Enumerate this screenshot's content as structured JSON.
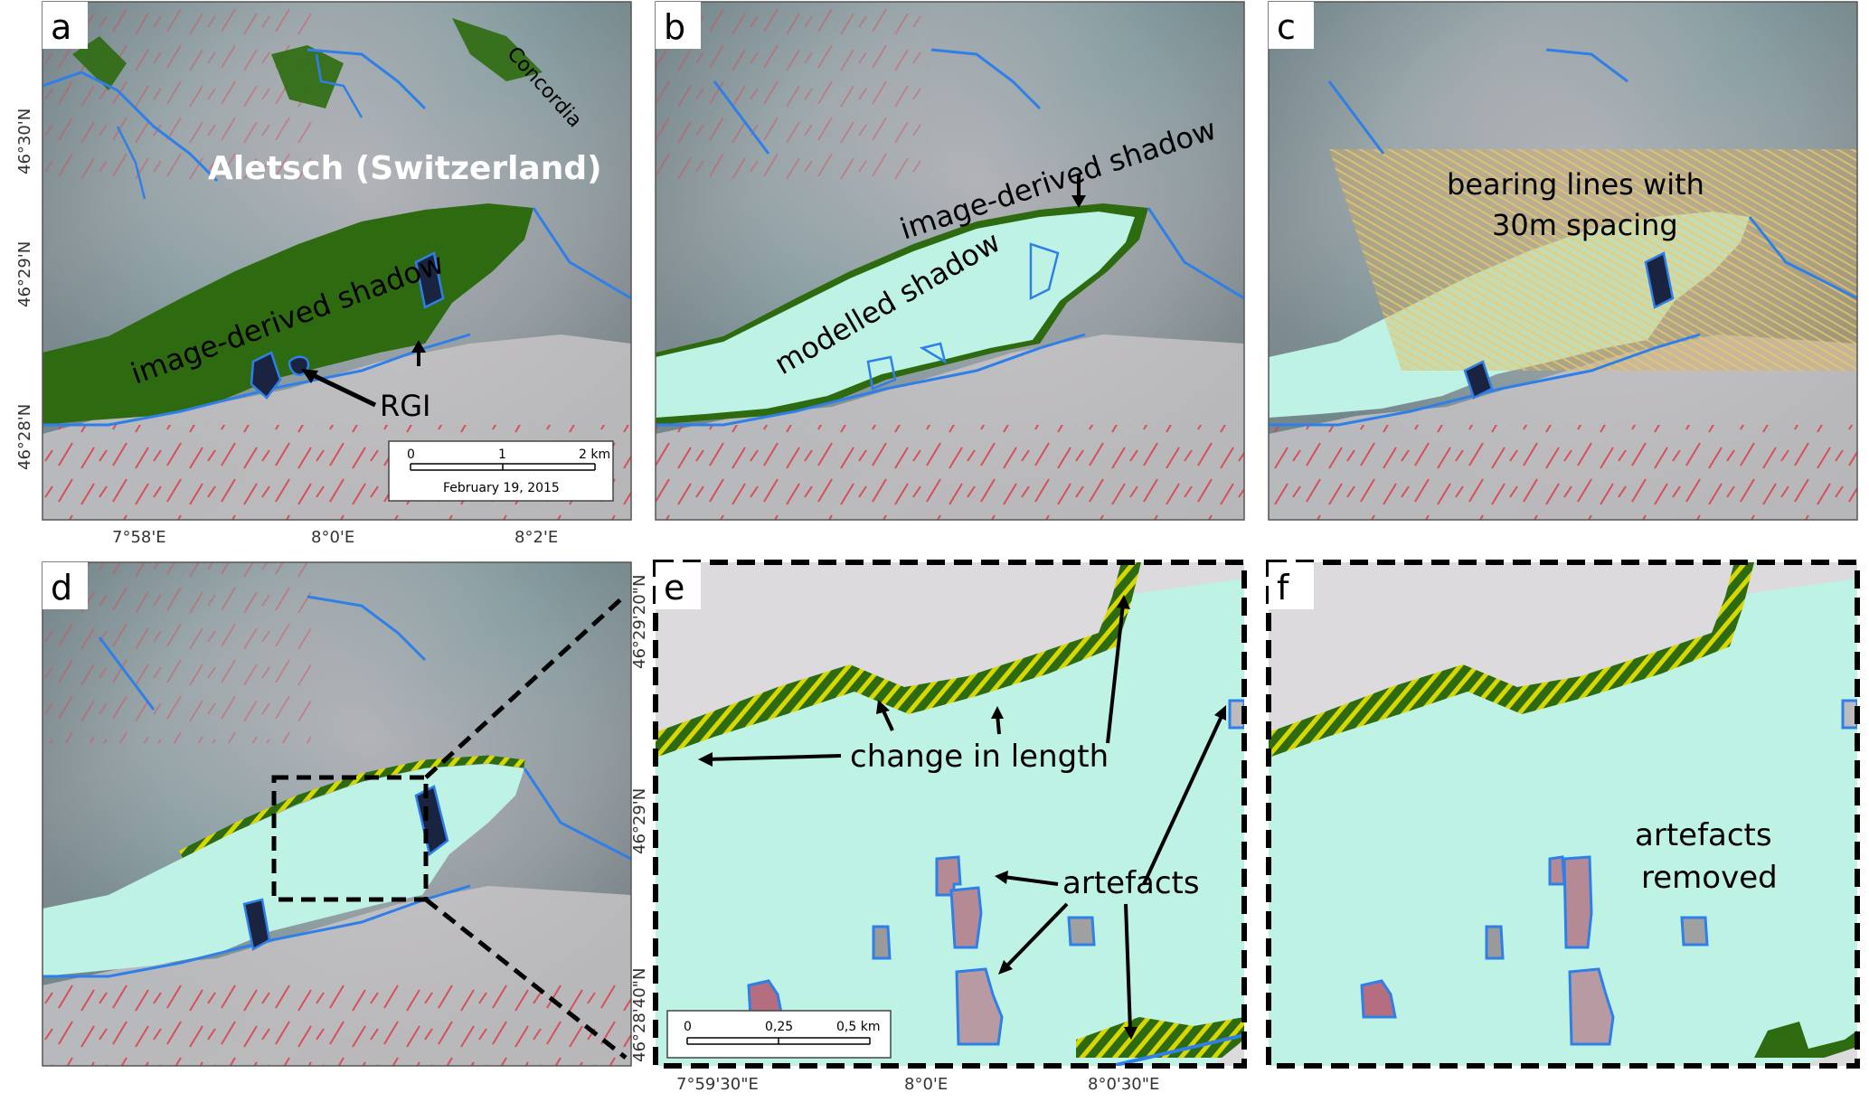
{
  "colors": {
    "shadow_image": "#2e6b10",
    "shadow_model": "#bdf2e4",
    "outline_rgi": "#2f7fe8",
    "hatch_change": "#d8d800",
    "bearing_overlay": "#d9b050",
    "frame": "#000000"
  },
  "panels": {
    "a": {
      "letter": "a",
      "site_label": "Aletsch (Switzerland)",
      "place_label": "Concordia",
      "shadow_label": "image-derived shadow",
      "rgi_label": "RGI",
      "scale_ticks": [
        "0",
        "1",
        "2 km"
      ],
      "date": "February 19, 2015",
      "lat_labels": [
        "46°30'N",
        "46°29'N",
        "46°28'N"
      ],
      "lon_labels": [
        "7°58'E",
        "8°0'E",
        "8°2'E"
      ]
    },
    "b": {
      "letter": "b",
      "shadow_label": "image-derived shadow",
      "modelled_label": "modelled shadow"
    },
    "c": {
      "letter": "c",
      "bearing_label_line1": "bearing lines with",
      "bearing_label_line2": "30m spacing"
    },
    "d": {
      "letter": "d"
    },
    "e": {
      "letter": "e",
      "change_label": "change in length",
      "artefacts_label": "artefacts",
      "scale_ticks": [
        "0",
        "0,25",
        "0,5 km"
      ],
      "lat_labels": [
        "46°29'20\"N",
        "46°29'N",
        "46°28'40\"N"
      ],
      "lon_labels": [
        "7°59'30\"E",
        "8°0'E",
        "8°0'30\"E"
      ]
    },
    "f": {
      "letter": "f",
      "removed_line1": "artefacts",
      "removed_line2": "removed"
    }
  }
}
